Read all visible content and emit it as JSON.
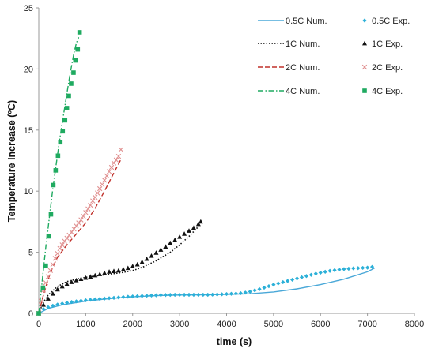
{
  "chart_data": {
    "type": "scatter",
    "xlabel": "time (s)",
    "ylabel": "Temperature Increase (ºC)",
    "xlim": [
      0,
      8000
    ],
    "ylim": [
      0,
      25
    ],
    "xticks": [
      "0",
      "1000",
      "2000",
      "3000",
      "4000",
      "5000",
      "6000",
      "7000",
      "8000"
    ],
    "yticks": [
      "0",
      "5",
      "10",
      "15",
      "20",
      "25"
    ],
    "grid": false,
    "legend_position": "top-right",
    "series": [
      {
        "name": "0.5C Num.",
        "kind": "line",
        "style": "solid",
        "color": "#4aa8d8",
        "x": [
          0,
          200,
          500,
          1000,
          1500,
          2000,
          2500,
          3000,
          3500,
          4000,
          4500,
          5000,
          5500,
          6000,
          6500,
          7000,
          7150
        ],
        "y": [
          0,
          0.4,
          0.7,
          1.0,
          1.2,
          1.35,
          1.45,
          1.5,
          1.52,
          1.55,
          1.6,
          1.75,
          2.0,
          2.35,
          2.8,
          3.4,
          3.7
        ]
      },
      {
        "name": "0.5C Exp.",
        "kind": "marker",
        "marker": "diamond",
        "color": "#2bb0d8",
        "x": [
          0,
          100,
          200,
          300,
          400,
          500,
          600,
          700,
          800,
          900,
          1000,
          1100,
          1200,
          1300,
          1400,
          1500,
          1600,
          1700,
          1800,
          1900,
          2000,
          2100,
          2200,
          2300,
          2400,
          2500,
          2600,
          2700,
          2800,
          2900,
          3000,
          3100,
          3200,
          3300,
          3400,
          3500,
          3600,
          3700,
          3800,
          3900,
          4000,
          4100,
          4200,
          4300,
          4400,
          4500,
          4600,
          4700,
          4800,
          4900,
          5000,
          5100,
          5200,
          5300,
          5400,
          5500,
          5600,
          5700,
          5800,
          5900,
          6000,
          6100,
          6200,
          6300,
          6400,
          6500,
          6600,
          6700,
          6800,
          6900,
          7000,
          7100
        ],
        "y": [
          0,
          0.35,
          0.5,
          0.62,
          0.72,
          0.8,
          0.87,
          0.93,
          0.98,
          1.03,
          1.07,
          1.11,
          1.15,
          1.18,
          1.21,
          1.24,
          1.27,
          1.3,
          1.33,
          1.36,
          1.38,
          1.4,
          1.42,
          1.44,
          1.46,
          1.48,
          1.5,
          1.5,
          1.51,
          1.52,
          1.52,
          1.52,
          1.52,
          1.52,
          1.52,
          1.52,
          1.52,
          1.53,
          1.54,
          1.56,
          1.58,
          1.6,
          1.62,
          1.65,
          1.7,
          1.78,
          1.88,
          1.98,
          2.1,
          2.22,
          2.35,
          2.45,
          2.55,
          2.65,
          2.75,
          2.85,
          2.95,
          3.05,
          3.15,
          3.25,
          3.33,
          3.4,
          3.47,
          3.53,
          3.58,
          3.62,
          3.65,
          3.68,
          3.7,
          3.72,
          3.74,
          3.8
        ]
      },
      {
        "name": "1C Num.",
        "kind": "line",
        "style": "dotted",
        "color": "#111111",
        "x": [
          0,
          100,
          200,
          400,
          600,
          800,
          1000,
          1200,
          1500,
          1800,
          2000,
          2200,
          2500,
          2800,
          3000,
          3200,
          3400
        ],
        "y": [
          0,
          0.9,
          1.5,
          2.2,
          2.6,
          2.8,
          2.95,
          3.05,
          3.2,
          3.35,
          3.5,
          3.75,
          4.3,
          5.0,
          5.6,
          6.3,
          7.1
        ]
      },
      {
        "name": "1C Exp.",
        "kind": "marker",
        "marker": "triangle",
        "color": "#111111",
        "x": [
          0,
          100,
          200,
          300,
          400,
          500,
          600,
          700,
          800,
          900,
          1000,
          1100,
          1200,
          1300,
          1400,
          1500,
          1600,
          1700,
          1800,
          1900,
          2000,
          2100,
          2200,
          2300,
          2400,
          2500,
          2600,
          2700,
          2800,
          2900,
          3000,
          3100,
          3200,
          3300,
          3400,
          3450
        ],
        "y": [
          0,
          0.7,
          1.2,
          1.6,
          1.95,
          2.2,
          2.4,
          2.55,
          2.7,
          2.8,
          2.9,
          3.0,
          3.1,
          3.2,
          3.3,
          3.4,
          3.45,
          3.5,
          3.6,
          3.7,
          3.85,
          4.0,
          4.2,
          4.45,
          4.7,
          4.95,
          5.2,
          5.45,
          5.75,
          6.0,
          6.25,
          6.5,
          6.75,
          7.0,
          7.3,
          7.5
        ]
      },
      {
        "name": "2C Num.",
        "kind": "line",
        "style": "dashed",
        "color": "#c0302a",
        "x": [
          0,
          100,
          200,
          300,
          400,
          600,
          800,
          1000,
          1200,
          1400,
          1600,
          1750
        ],
        "y": [
          0,
          1.5,
          2.8,
          3.8,
          4.6,
          5.6,
          6.5,
          7.4,
          8.6,
          10.0,
          11.5,
          12.6
        ]
      },
      {
        "name": "2C Exp.",
        "kind": "marker",
        "marker": "cross",
        "color": "#e09090",
        "x": [
          0,
          50,
          100,
          150,
          200,
          250,
          300,
          350,
          400,
          450,
          500,
          550,
          600,
          650,
          700,
          750,
          800,
          850,
          900,
          950,
          1000,
          1050,
          1100,
          1150,
          1200,
          1250,
          1300,
          1350,
          1400,
          1450,
          1500,
          1550,
          1600,
          1650,
          1700,
          1750
        ],
        "y": [
          0,
          1.0,
          1.9,
          2.5,
          3.0,
          3.5,
          4.0,
          4.5,
          4.9,
          5.3,
          5.6,
          5.9,
          6.15,
          6.4,
          6.65,
          6.9,
          7.15,
          7.4,
          7.65,
          7.95,
          8.25,
          8.55,
          8.85,
          9.2,
          9.5,
          9.85,
          10.2,
          10.55,
          10.9,
          11.25,
          11.6,
          11.95,
          12.3,
          12.55,
          12.85,
          13.4
        ]
      },
      {
        "name": "4C Num.",
        "kind": "line",
        "style": "dashdot",
        "color": "#1faa60",
        "x": [
          0,
          50,
          100,
          150,
          200,
          250,
          300,
          350,
          400,
          450,
          500,
          550,
          600,
          650,
          700,
          750,
          800,
          850
        ],
        "y": [
          0,
          1.8,
          3.6,
          5.4,
          7.0,
          8.6,
          10.2,
          11.6,
          13.0,
          14.3,
          15.6,
          16.8,
          18.0,
          19.2,
          20.3,
          21.3,
          22.1,
          22.6
        ]
      },
      {
        "name": "4C Exp.",
        "kind": "marker",
        "marker": "square",
        "color": "#1faa60",
        "x": [
          0,
          90,
          150,
          210,
          260,
          310,
          360,
          410,
          460,
          510,
          560,
          600,
          640,
          690,
          740,
          780,
          830,
          870
        ],
        "y": [
          0,
          2.1,
          3.9,
          6.3,
          8.1,
          10.5,
          11.7,
          12.9,
          14.0,
          14.9,
          15.8,
          16.8,
          17.8,
          18.8,
          19.7,
          20.7,
          21.6,
          23.0
        ]
      }
    ]
  }
}
